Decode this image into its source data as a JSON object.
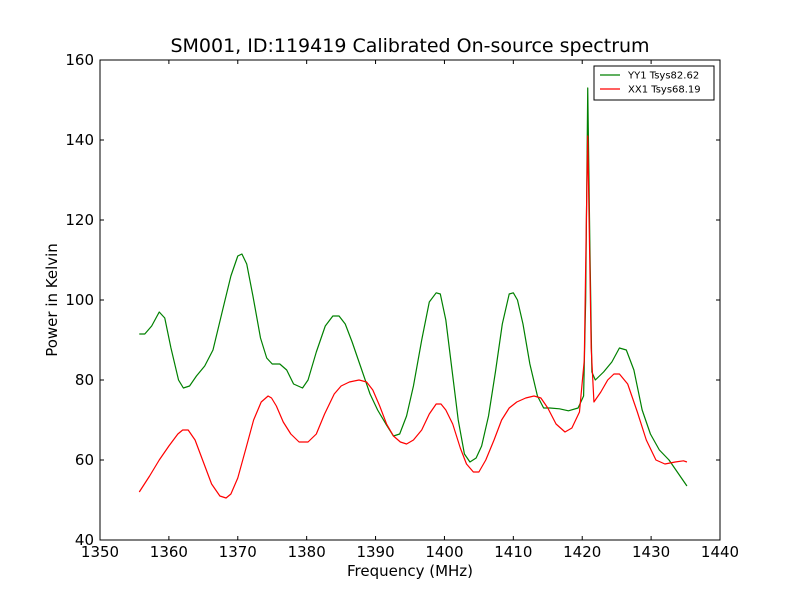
{
  "chart_data": {
    "type": "line",
    "title": "SM001, ID:119419 Calibrated On-source spectrum",
    "xlabel": "Frequency (MHz)",
    "ylabel": "Power in Kelvin",
    "xlim": [
      1350,
      1440
    ],
    "ylim": [
      40,
      160
    ],
    "xticks": [
      "1350",
      "1360",
      "1370",
      "1380",
      "1390",
      "1400",
      "1410",
      "1420",
      "1430",
      "1440"
    ],
    "yticks": [
      "40",
      "60",
      "80",
      "100",
      "120",
      "140",
      "160"
    ],
    "grid": false,
    "legend_position": "top-right",
    "series": [
      {
        "name": "YY1 Tsys82.62",
        "color": "#008000",
        "x": [
          1355.7,
          1356.5,
          1357.5,
          1358.6,
          1359.4,
          1360.3,
          1361.4,
          1362.1,
          1363.0,
          1364.0,
          1365.2,
          1366.4,
          1367.8,
          1369.0,
          1370.0,
          1370.6,
          1371.3,
          1372.2,
          1373.3,
          1374.2,
          1375.0,
          1376.1,
          1377.1,
          1378.1,
          1379.4,
          1380.2,
          1381.4,
          1382.7,
          1383.8,
          1384.7,
          1385.6,
          1386.6,
          1387.8,
          1389.2,
          1390.3,
          1391.5,
          1392.6,
          1393.5,
          1394.5,
          1395.5,
          1396.7,
          1397.8,
          1398.8,
          1399.4,
          1400.2,
          1401.1,
          1402.0,
          1402.9,
          1403.7,
          1404.6,
          1405.4,
          1406.4,
          1407.4,
          1408.4,
          1409.4,
          1410.0,
          1410.6,
          1411.4,
          1412.4,
          1413.5,
          1414.4,
          1415.3,
          1416.7,
          1418.0,
          1419.4,
          1420.2,
          1420.5,
          1420.8,
          1421.1,
          1421.4,
          1421.9,
          1423.1,
          1424.3,
          1425.4,
          1426.4,
          1427.5,
          1428.7,
          1429.9,
          1431.2,
          1432.6,
          1434.0,
          1435.2
        ],
        "values": [
          91.5,
          91.5,
          93.5,
          97.0,
          95.5,
          88.0,
          80.0,
          78.0,
          78.5,
          81.0,
          83.5,
          87.5,
          97.5,
          106.0,
          111.0,
          111.5,
          109.0,
          101.0,
          90.5,
          85.5,
          84.0,
          84.0,
          82.5,
          79.0,
          78.0,
          80.0,
          87.0,
          93.5,
          96.0,
          96.0,
          94.0,
          89.5,
          83.5,
          76.5,
          72.5,
          69.0,
          66.0,
          66.5,
          71.0,
          78.5,
          90.0,
          99.5,
          101.8,
          101.5,
          95.0,
          82.5,
          70.0,
          61.5,
          59.5,
          60.5,
          63.5,
          71.0,
          82.0,
          94.0,
          101.5,
          101.8,
          100.0,
          94.0,
          84.0,
          76.0,
          73.0,
          73.0,
          72.8,
          72.3,
          73.0,
          76.0,
          100.0,
          153.0,
          115.0,
          82.0,
          80.0,
          82.0,
          84.5,
          88.0,
          87.5,
          82.5,
          72.5,
          66.5,
          62.5,
          60.0,
          56.5,
          53.5
        ]
      },
      {
        "name": "XX1 Tsys68.19",
        "color": "#ff0000",
        "x": [
          1355.7,
          1357.2,
          1358.6,
          1360.0,
          1361.3,
          1362.0,
          1362.8,
          1363.8,
          1365.0,
          1366.2,
          1367.4,
          1368.3,
          1369.0,
          1370.0,
          1371.2,
          1372.3,
          1373.4,
          1374.4,
          1374.9,
          1375.6,
          1376.6,
          1377.7,
          1378.9,
          1380.2,
          1381.4,
          1382.6,
          1384.0,
          1385.0,
          1386.2,
          1387.6,
          1388.7,
          1389.6,
          1390.6,
          1391.6,
          1392.6,
          1393.6,
          1394.5,
          1395.5,
          1396.7,
          1397.8,
          1398.8,
          1399.5,
          1400.2,
          1401.2,
          1402.3,
          1403.2,
          1404.2,
          1405.0,
          1406.0,
          1407.2,
          1408.3,
          1409.4,
          1410.5,
          1411.8,
          1413.0,
          1414.0,
          1415.0,
          1416.2,
          1417.5,
          1418.5,
          1419.6,
          1420.3,
          1420.6,
          1420.8,
          1421.0,
          1421.3,
          1421.7,
          1422.7,
          1423.7,
          1424.6,
          1425.4,
          1426.6,
          1428.0,
          1429.3,
          1430.7,
          1432.0,
          1433.5,
          1434.7,
          1435.2
        ],
        "values": [
          52.0,
          56.0,
          60.0,
          63.5,
          66.5,
          67.5,
          67.5,
          65.0,
          59.5,
          54.0,
          51.0,
          50.5,
          51.5,
          55.5,
          63.0,
          70.0,
          74.5,
          76.0,
          75.5,
          73.5,
          69.5,
          66.5,
          64.5,
          64.5,
          66.5,
          71.5,
          76.5,
          78.5,
          79.5,
          80.0,
          79.5,
          77.5,
          73.5,
          69.0,
          66.0,
          64.5,
          64.0,
          65.0,
          67.5,
          71.5,
          74.0,
          74.0,
          72.5,
          69.0,
          63.0,
          59.0,
          57.0,
          57.0,
          60.0,
          65.0,
          70.0,
          73.0,
          74.5,
          75.5,
          76.0,
          75.5,
          73.0,
          69.0,
          67.0,
          68.0,
          72.0,
          85.0,
          120.0,
          141.0,
          120.0,
          88.0,
          74.5,
          77.0,
          80.0,
          81.5,
          81.5,
          79.0,
          72.0,
          65.0,
          60.0,
          59.0,
          59.5,
          59.8,
          59.5
        ]
      }
    ]
  }
}
